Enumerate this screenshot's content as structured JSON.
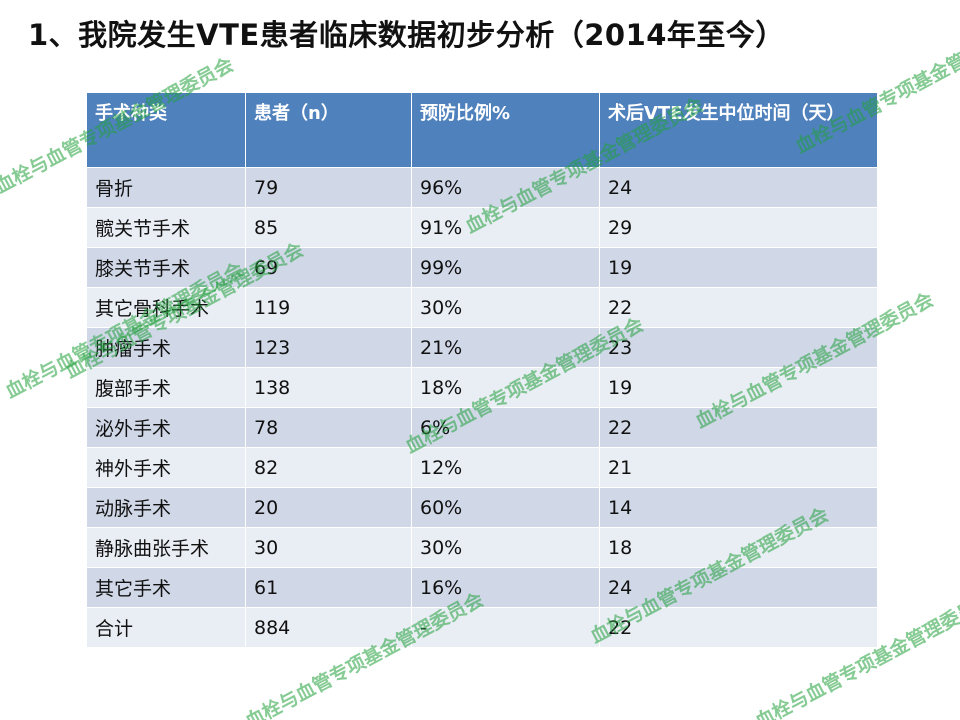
{
  "title": "1、我院发生VTE患者临床数据初步分析（2014年至今）",
  "table": {
    "headers": [
      "手术种类",
      "患者（n）",
      "预防比例%",
      "术后VTE发生中位时间（天）"
    ],
    "rows": [
      [
        "骨折",
        "79",
        "96%",
        "24"
      ],
      [
        "髋关节手术",
        "85",
        "91%",
        "29"
      ],
      [
        "膝关节手术",
        "69",
        "99%",
        "19"
      ],
      [
        "其它骨科手术",
        "119",
        "30%",
        "22"
      ],
      [
        "肿瘤手术",
        "123",
        "21%",
        "23"
      ],
      [
        "腹部手术",
        "138",
        "18%",
        "19"
      ],
      [
        "泌外手术",
        "78",
        "6%",
        "22"
      ],
      [
        "神外手术",
        "82",
        "12%",
        "21"
      ],
      [
        "动脉手术",
        "20",
        "60%",
        "14"
      ],
      [
        "静脉曲张手术",
        "30",
        "30%",
        "18"
      ],
      [
        "其它手术",
        "61",
        "16%",
        "24"
      ],
      [
        "合计",
        "884",
        "-",
        "22"
      ]
    ]
  },
  "watermark": {
    "text": "血栓与血管专项基金管理委员会",
    "color": "#22a03c"
  }
}
